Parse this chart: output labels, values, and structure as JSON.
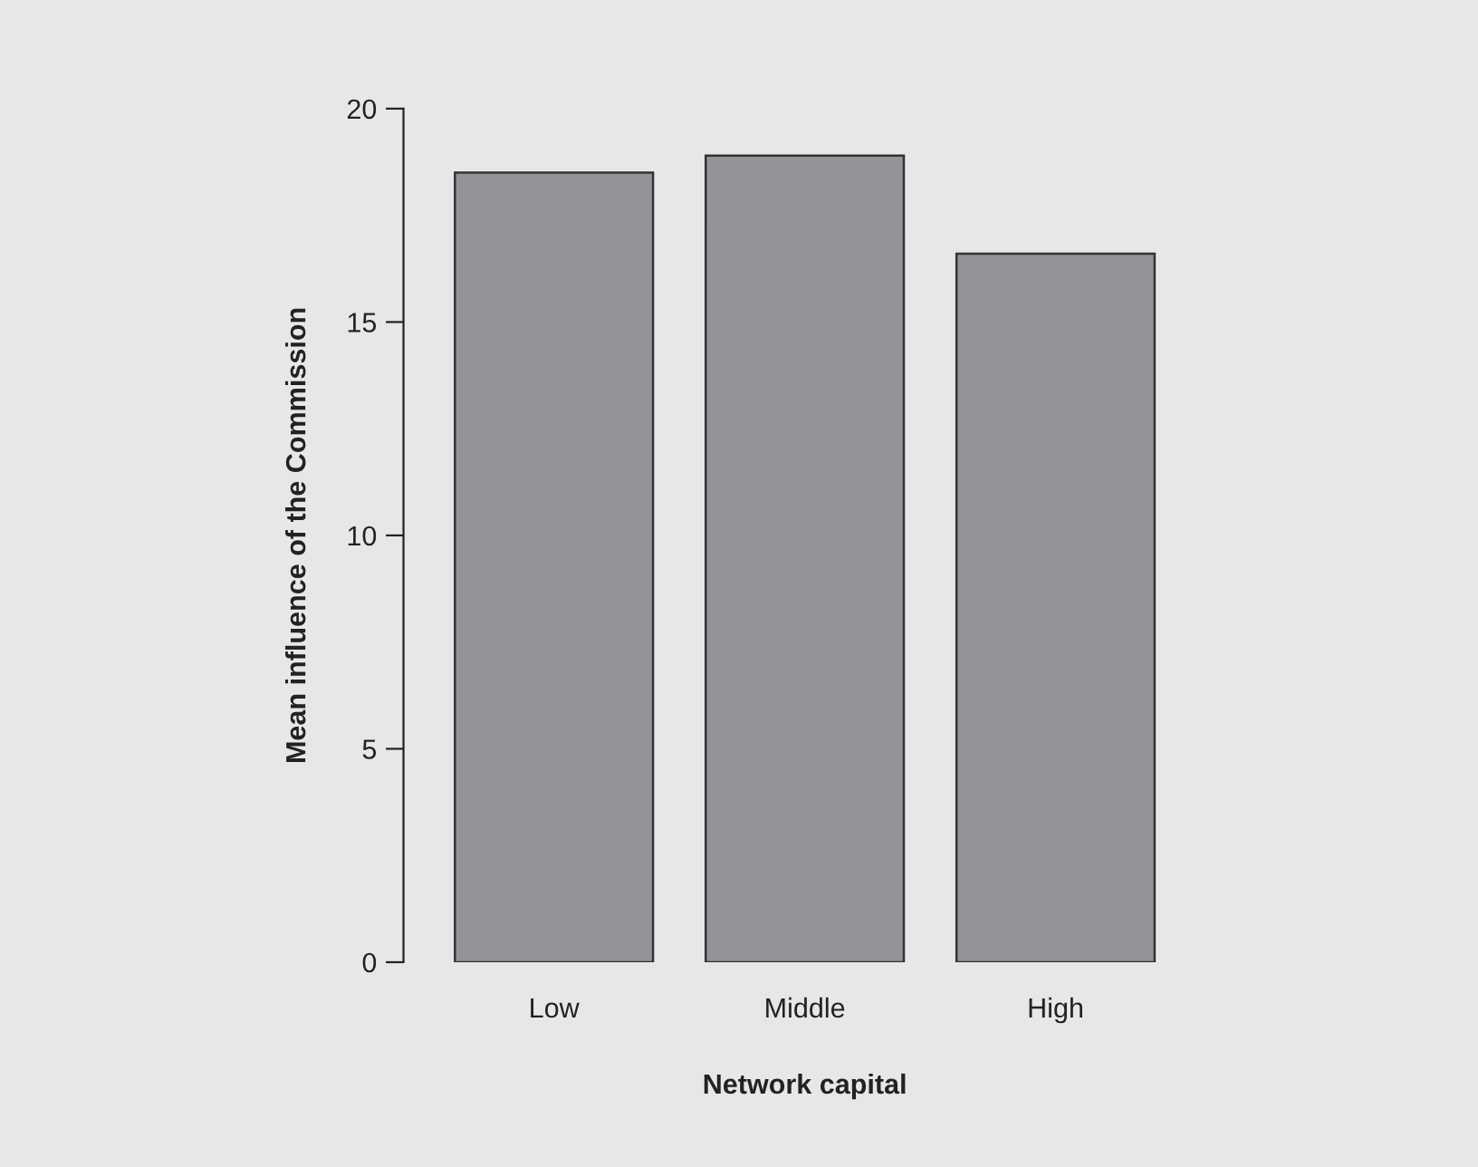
{
  "chart_data": {
    "type": "bar",
    "xlabel": "Network capital",
    "ylabel": "Mean influence of the Commission",
    "categories": [
      "Low",
      "Middle",
      "High"
    ],
    "values": [
      18.5,
      18.9,
      16.6
    ],
    "color": "#939497",
    "ylim": [
      0,
      20
    ],
    "yticks": [
      0,
      5,
      10,
      15,
      20
    ],
    "grid": false
  }
}
